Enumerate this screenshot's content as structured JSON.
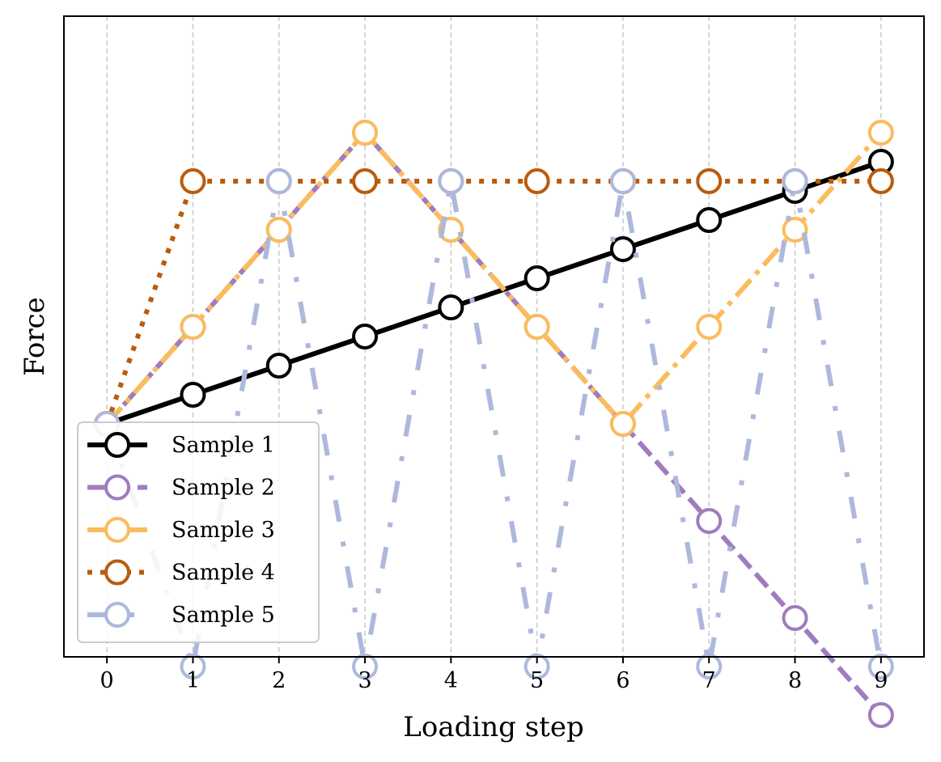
{
  "chart_data": {
    "type": "line",
    "title": "",
    "xlabel": "Loading step",
    "ylabel": "Force",
    "x": [
      0,
      1,
      2,
      3,
      4,
      5,
      6,
      7,
      8,
      9
    ],
    "xlim": [
      -0.5,
      9.5
    ],
    "ylim": [
      -0.6,
      1.05
    ],
    "grid": "x-dashed",
    "legend_position": "lower-left",
    "series": [
      {
        "name": "Sample 1",
        "color": "#000000",
        "linestyle": "solid",
        "values": [
          0.0,
          0.075,
          0.15,
          0.225,
          0.3,
          0.375,
          0.45,
          0.525,
          0.6,
          0.675
        ]
      },
      {
        "name": "Sample 2",
        "color": "#a07cbe",
        "linestyle": "dashed",
        "values": [
          0.0,
          0.25,
          0.5,
          0.75,
          0.5,
          0.25,
          0.0,
          -0.25,
          -0.5,
          -0.75
        ]
      },
      {
        "name": "Sample 3",
        "color": "#fbbc5e",
        "linestyle": "dashdot",
        "values": [
          0.0,
          0.25,
          0.5,
          0.75,
          0.5,
          0.25,
          0.0,
          0.25,
          0.5,
          0.75
        ]
      },
      {
        "name": "Sample 4",
        "color": "#b95c0c",
        "linestyle": "dotted",
        "values": [
          0.0,
          0.625,
          0.625,
          0.625,
          0.625,
          0.625,
          0.625,
          0.625,
          0.625,
          0.625
        ]
      },
      {
        "name": "Sample 5",
        "color": "#adb8dc",
        "linestyle": "loosely-dashdot",
        "values": [
          0.0,
          -0.625,
          0.625,
          -0.625,
          0.625,
          -0.625,
          0.625,
          -0.625,
          0.625,
          -0.625
        ]
      }
    ]
  }
}
